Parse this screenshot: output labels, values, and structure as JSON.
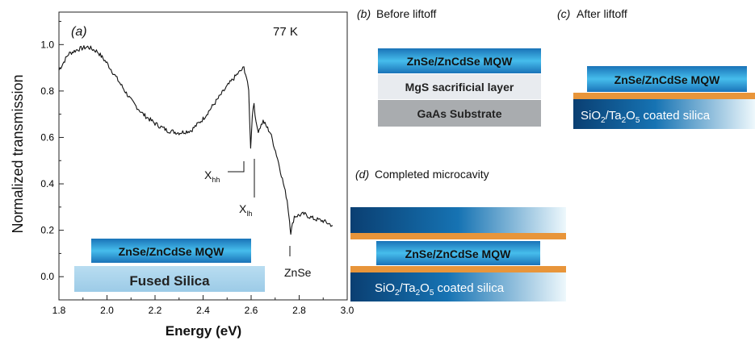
{
  "chart_data": {
    "type": "line",
    "panel_label": "(a)",
    "temperature": "77 K",
    "xlabel": "Energy (eV)",
    "ylabel": "Normalized transmission",
    "xlim": [
      1.8,
      3.0
    ],
    "ylim": [
      -0.1,
      1.14
    ],
    "xticks": [
      "1.8",
      "2.0",
      "2.2",
      "2.4",
      "2.6",
      "2.8",
      "3.0"
    ],
    "yticks": [
      "0.0",
      "0.2",
      "0.4",
      "0.6",
      "0.8",
      "1.0"
    ],
    "series": [
      {
        "x": [
          1.8,
          1.84,
          1.88,
          1.92,
          1.96,
          2.0,
          2.05,
          2.1,
          2.15,
          2.2,
          2.25,
          2.3,
          2.35,
          2.4,
          2.45,
          2.5,
          2.54,
          2.57,
          2.58,
          2.59,
          2.598,
          2.605,
          2.612,
          2.62,
          2.63,
          2.65,
          2.68,
          2.71,
          2.73,
          2.75,
          2.76,
          2.765,
          2.78,
          2.82,
          2.86,
          2.9,
          2.94
        ],
        "y": [
          0.89,
          0.96,
          0.98,
          0.99,
          0.97,
          0.92,
          0.84,
          0.76,
          0.7,
          0.66,
          0.63,
          0.62,
          0.63,
          0.68,
          0.75,
          0.82,
          0.87,
          0.9,
          0.86,
          0.8,
          0.55,
          0.7,
          0.75,
          0.66,
          0.63,
          0.67,
          0.62,
          0.51,
          0.42,
          0.33,
          0.24,
          0.19,
          0.26,
          0.27,
          0.25,
          0.24,
          0.22
        ]
      }
    ],
    "annotations": [
      {
        "text": "X",
        "sub": "hh"
      },
      {
        "text": "X",
        "sub": "lh"
      },
      {
        "text": "ZnSe"
      }
    ],
    "inset": {
      "top_layer": "ZnSe/ZnCdSe MQW",
      "substrate": "Fused Silica"
    }
  },
  "panel_b": {
    "label": "(b)",
    "title": "Before liftoff",
    "layers": [
      "ZnSe/ZnCdSe MQW",
      "MgS sacrificial layer",
      "GaAs Substrate"
    ]
  },
  "panel_c": {
    "label": "(c)",
    "title": "After liftoff",
    "layers": [
      "ZnSe/ZnCdSe MQW"
    ],
    "substrate_main": "SiO",
    "substrate_sub1": "2",
    "substrate_mid": "/Ta",
    "substrate_sub2": "2",
    "substrate_mid2": "O",
    "substrate_sub3": "5",
    "substrate_tail": " coated silica"
  },
  "panel_d": {
    "label": "(d)",
    "title": "Completed microcavity",
    "layers": [
      "ZnSe/ZnCdSe MQW"
    ],
    "substrate_main": "SiO",
    "substrate_sub1": "2",
    "substrate_mid": "/Ta",
    "substrate_sub2": "2",
    "substrate_mid2": "O",
    "substrate_sub3": "5",
    "substrate_tail": " coated silica"
  },
  "colors": {
    "mqw_dark": "#1f7fc0",
    "mqw_light": "#4fc3f0",
    "mgs": "#e8ebef",
    "gaas": "#a9acaf",
    "orange": "#e8953a",
    "silica_dark": "#0b4f86",
    "silica_light": "#e9f5fb",
    "fused_silica": "#a9d4ec"
  }
}
